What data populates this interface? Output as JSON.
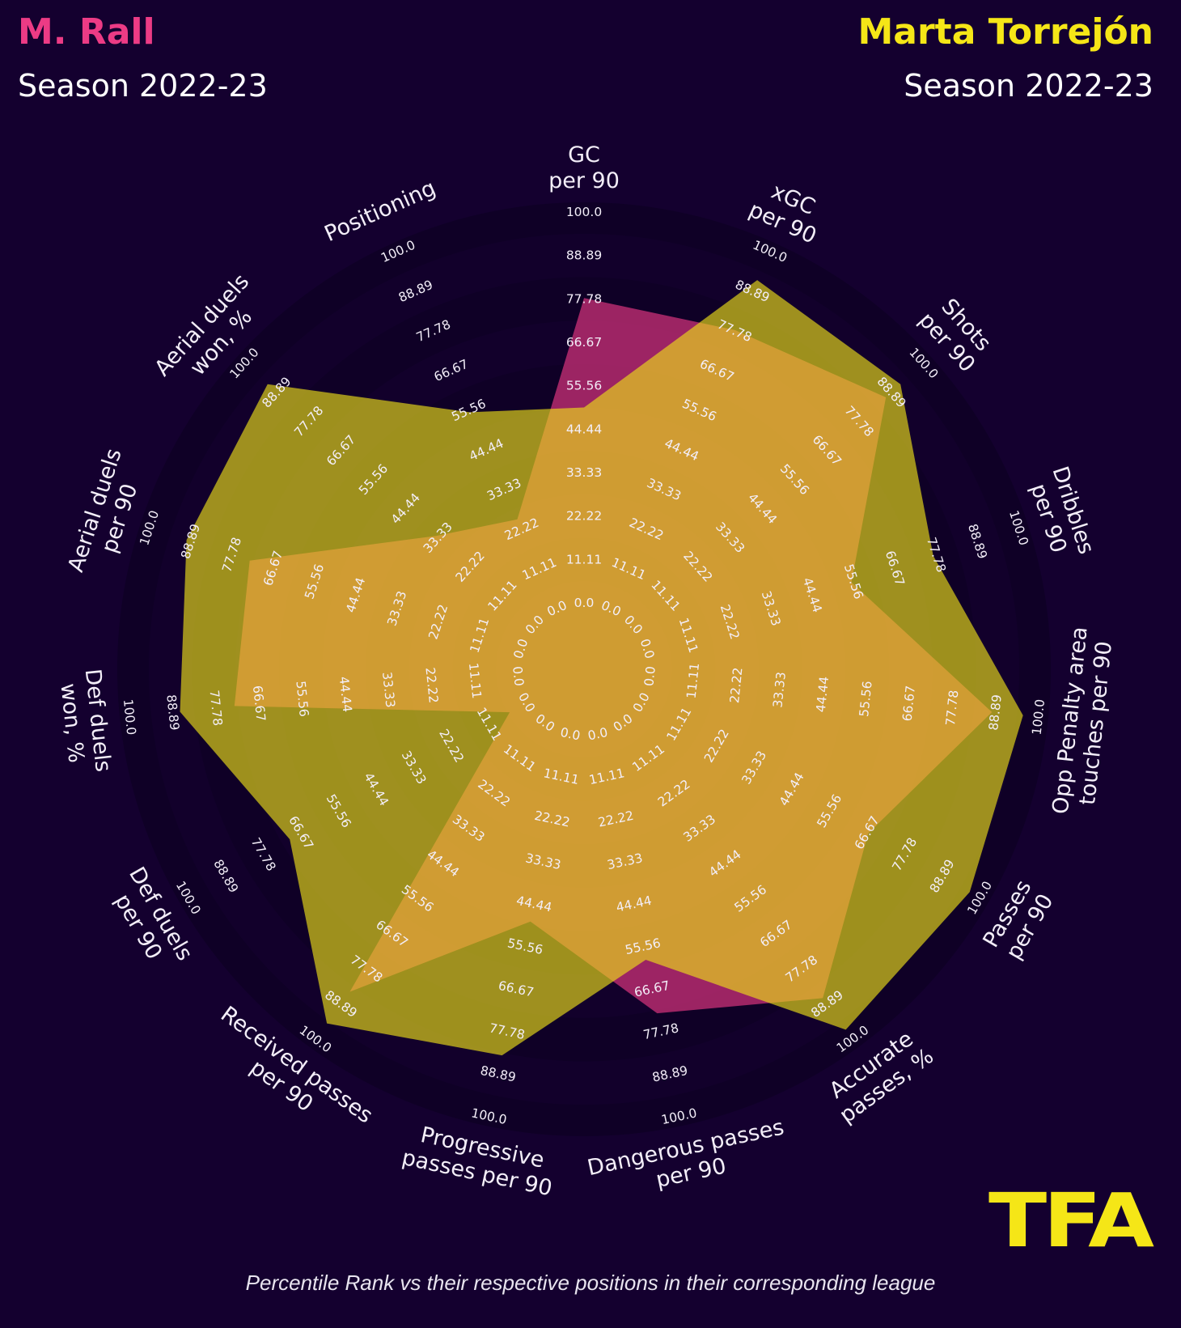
{
  "header": {
    "left_player": "M. Rall",
    "left_season": "Season 2022-23",
    "right_player": "Marta Torrejón",
    "right_season": "Season 2022-23"
  },
  "footer": "Percentile Rank vs their respective positions in their corresponding league",
  "logo": "TFA",
  "colors": {
    "background": "#14002f",
    "left_player": "#d9337e",
    "right_player": "#ebdd18",
    "left_title": "#ec3b85",
    "right_title": "#f5e617"
  },
  "chart_data": {
    "type": "radar",
    "title": "",
    "range": [
      0,
      100
    ],
    "ring_labels": [
      "0.0",
      "11.11",
      "22.22",
      "33.33",
      "44.44",
      "55.56",
      "66.67",
      "77.78",
      "88.89",
      "100.0"
    ],
    "categories": [
      [
        "GC",
        "per 90"
      ],
      [
        "xGC",
        "per 90"
      ],
      [
        "Shots",
        "per 90"
      ],
      [
        "Dribbles",
        "per 90"
      ],
      [
        "Opp Penalty area",
        "touches per 90"
      ],
      [
        "Passes",
        "per 90"
      ],
      [
        "Accurate",
        "passes, %"
      ],
      [
        "Dangerous passes",
        "per 90"
      ],
      [
        "Progressive",
        "passes per 90"
      ],
      [
        "Received passes",
        "per 90"
      ],
      [
        "Def duels",
        "per 90"
      ],
      [
        "Def duels",
        "won, %"
      ],
      [
        "Aerial duels",
        "per 90"
      ],
      [
        "Aerial duels",
        "won, %"
      ],
      [
        "Positioning"
      ]
    ],
    "series": [
      {
        "name": "M. Rall",
        "color": "#d9337e",
        "values": [
          78,
          78,
          87,
          55,
          88,
          67,
          87,
          73,
          49,
          85,
          5,
          73,
          73,
          34,
          25
        ]
      },
      {
        "name": "Marta Torrejón",
        "color": "#ebdd18",
        "values": [
          50,
          92,
          92,
          77,
          96,
          97,
          97,
          59,
          84,
          95,
          70,
          87,
          90,
          92,
          55
        ]
      }
    ]
  }
}
